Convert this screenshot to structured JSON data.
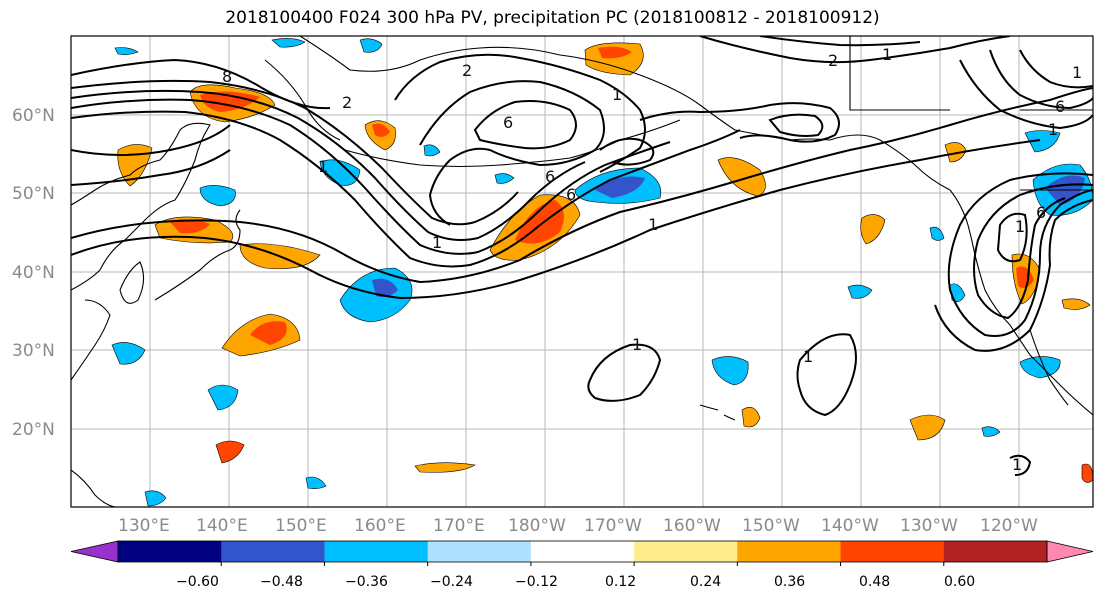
{
  "title": "2018100400 F024 300 hPa PV, precipitation PC (2018100812 - 2018100912)",
  "map": {
    "lat_labels": [
      "60°N",
      "50°N",
      "40°N",
      "30°N",
      "20°N"
    ],
    "lon_labels": [
      "130°E",
      "140°E",
      "150°E",
      "160°E",
      "170°E",
      "180°W",
      "170°W",
      "160°W",
      "150°W",
      "140°W",
      "130°W",
      "120°W"
    ],
    "pv_contour_labels": [
      "8",
      "1",
      "2",
      "6",
      "6",
      "2",
      "1",
      "2",
      "1",
      "1",
      "6",
      "1",
      "1",
      "6",
      "6",
      "1",
      "1",
      "1",
      "1",
      "1"
    ],
    "precip_colors": {
      "strong_negative": "#3355cc",
      "negative": "#00bfff",
      "weak_negative": "#aee0ff",
      "weak_positive": "#ffe680",
      "positive": "#ffa500",
      "strong_positive": "#ff4500"
    },
    "grid": true
  },
  "colorbar": {
    "colors": [
      "#9932cc",
      "#000080",
      "#3355cc",
      "#00bfff",
      "#b0e0ff",
      "#ffffff",
      "#ffec8b",
      "#ffa500",
      "#ff4500",
      "#b22222",
      "#ff88b0"
    ],
    "ticks": [
      "−0.60",
      "−0.48",
      "−0.36",
      "−0.24",
      "−0.12",
      "0.12",
      "0.24",
      "0.36",
      "0.48",
      "0.60"
    ]
  }
}
